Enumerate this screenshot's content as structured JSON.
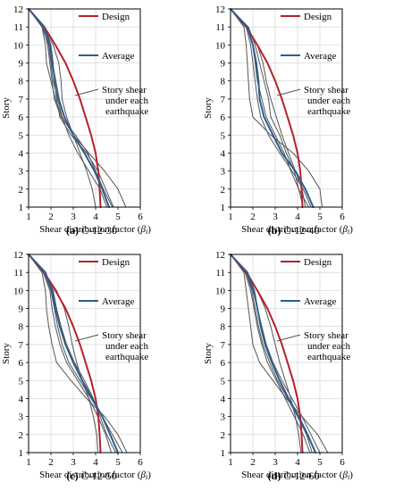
{
  "figure": {
    "xlabel_text": "Shear distribution factor (",
    "xlabel_symbol": "β",
    "xlabel_sub": "i",
    "xlabel_end": ")",
    "ylabel": "Story"
  },
  "legend": {
    "design": "Design",
    "average": "Average",
    "story_line1": "Story shear",
    "story_line2": "under each",
    "story_line3": "earthquake"
  },
  "colors": {
    "design": "#b5222a",
    "average": "#2a5d8f",
    "earthquake": "#555555",
    "grid": "#cfcfcf"
  },
  "chart_data": [
    {
      "type": "line",
      "caption_tag": "(a)",
      "caption_name": "C-12-30",
      "x_ticks": [
        1,
        2,
        3,
        4,
        5,
        6
      ],
      "y_ticks": [
        1,
        2,
        3,
        4,
        5,
        6,
        7,
        8,
        9,
        10,
        11,
        12
      ],
      "xlim": [
        1,
        6
      ],
      "ylim": [
        1,
        12
      ],
      "grid": true,
      "legend_position": "top-right",
      "y": [
        12,
        11,
        10,
        9,
        8,
        7,
        6,
        5,
        4,
        3,
        2,
        1
      ],
      "series": [
        {
          "name": "Design",
          "role": "design",
          "x": [
            1,
            1.7,
            2.2,
            2.65,
            3.0,
            3.3,
            3.55,
            3.8,
            4.0,
            4.12,
            4.18,
            4.22
          ]
        },
        {
          "name": "Average",
          "role": "average",
          "x": [
            1,
            1.7,
            1.95,
            2.05,
            2.2,
            2.35,
            2.6,
            3.0,
            3.5,
            3.95,
            4.3,
            4.6
          ]
        },
        {
          "role": "earthquake",
          "x": [
            1,
            1.6,
            1.75,
            1.8,
            2.0,
            2.2,
            2.5,
            3.0,
            3.7,
            4.4,
            5.0,
            5.35
          ]
        },
        {
          "role": "earthquake",
          "x": [
            1,
            1.65,
            2.1,
            2.35,
            2.45,
            2.5,
            2.7,
            3.0,
            3.3,
            3.6,
            3.85,
            4.0
          ]
        },
        {
          "role": "earthquake",
          "x": [
            1,
            1.7,
            2.0,
            2.1,
            2.15,
            2.25,
            2.4,
            2.9,
            3.6,
            4.1,
            4.45,
            4.8
          ]
        },
        {
          "role": "earthquake",
          "x": [
            1,
            1.6,
            1.9,
            2.0,
            2.1,
            2.3,
            2.5,
            2.8,
            3.2,
            3.7,
            4.2,
            4.5
          ]
        },
        {
          "role": "earthquake",
          "x": [
            1,
            1.65,
            1.85,
            1.95,
            2.05,
            2.15,
            2.45,
            3.1,
            3.65,
            4.0,
            4.35,
            4.75
          ]
        }
      ]
    },
    {
      "type": "line",
      "caption_tag": "(b)",
      "caption_name": "C-12-40",
      "x_ticks": [
        1,
        2,
        3,
        4,
        5,
        6
      ],
      "y_ticks": [
        1,
        2,
        3,
        4,
        5,
        6,
        7,
        8,
        9,
        10,
        11,
        12
      ],
      "xlim": [
        1,
        6
      ],
      "ylim": [
        1,
        12
      ],
      "grid": true,
      "legend_position": "top-right",
      "y": [
        12,
        11,
        10,
        9,
        8,
        7,
        6,
        5,
        4,
        3,
        2,
        1
      ],
      "series": [
        {
          "name": "Design",
          "role": "design",
          "x": [
            1,
            1.7,
            2.2,
            2.65,
            3.0,
            3.3,
            3.55,
            3.8,
            4.0,
            4.12,
            4.18,
            4.22
          ]
        },
        {
          "name": "Average",
          "role": "average",
          "x": [
            1,
            1.75,
            2.0,
            2.15,
            2.25,
            2.3,
            2.5,
            2.9,
            3.3,
            3.9,
            4.35,
            4.7
          ]
        },
        {
          "role": "earthquake",
          "x": [
            1,
            1.6,
            1.7,
            1.75,
            1.8,
            1.85,
            2.0,
            2.8,
            3.8,
            4.5,
            5.0,
            5.1
          ]
        },
        {
          "role": "earthquake",
          "x": [
            1,
            1.7,
            2.2,
            2.45,
            2.6,
            2.8,
            3.05,
            3.3,
            3.6,
            3.9,
            4.2,
            4.35
          ]
        },
        {
          "role": "earthquake",
          "x": [
            1,
            1.8,
            2.1,
            2.3,
            2.5,
            2.7,
            2.8,
            3.2,
            3.5,
            3.85,
            4.05,
            4.25
          ]
        },
        {
          "role": "earthquake",
          "x": [
            1,
            1.7,
            1.9,
            2.0,
            2.1,
            2.2,
            2.35,
            2.7,
            3.2,
            3.75,
            4.25,
            4.6
          ]
        },
        {
          "role": "earthquake",
          "x": [
            1,
            1.75,
            2.0,
            2.1,
            2.2,
            2.4,
            2.6,
            3.0,
            3.4,
            3.7,
            4.05,
            4.5
          ]
        }
      ]
    },
    {
      "type": "line",
      "caption_tag": "(c)",
      "caption_name": "C-12-50",
      "x_ticks": [
        1,
        2,
        3,
        4,
        5,
        6
      ],
      "y_ticks": [
        1,
        2,
        3,
        4,
        5,
        6,
        7,
        8,
        9,
        10,
        11,
        12
      ],
      "xlim": [
        1,
        6
      ],
      "ylim": [
        1,
        12
      ],
      "grid": true,
      "legend_position": "top-right",
      "y": [
        12,
        11,
        10,
        9,
        8,
        7,
        6,
        5,
        4,
        3,
        2,
        1
      ],
      "series": [
        {
          "name": "Design",
          "role": "design",
          "x": [
            1,
            1.7,
            2.2,
            2.65,
            3.0,
            3.3,
            3.55,
            3.8,
            4.0,
            4.12,
            4.18,
            4.22
          ]
        },
        {
          "name": "Average",
          "role": "average",
          "x": [
            1,
            1.75,
            2.05,
            2.2,
            2.4,
            2.65,
            3.0,
            3.4,
            3.85,
            4.3,
            4.65,
            5.0
          ]
        },
        {
          "role": "earthquake",
          "x": [
            1,
            1.6,
            1.75,
            1.8,
            1.9,
            2.05,
            2.25,
            2.9,
            3.6,
            4.4,
            5.0,
            5.4
          ]
        },
        {
          "role": "earthquake",
          "x": [
            1,
            1.7,
            2.25,
            2.6,
            2.8,
            2.95,
            3.15,
            3.4,
            3.7,
            3.9,
            4.05,
            4.1
          ]
        },
        {
          "role": "earthquake",
          "x": [
            1,
            1.75,
            2.1,
            2.25,
            2.45,
            2.7,
            3.05,
            3.5,
            3.9,
            4.2,
            4.5,
            4.9
          ]
        },
        {
          "role": "earthquake",
          "x": [
            1,
            1.7,
            2.0,
            2.15,
            2.3,
            2.5,
            2.8,
            3.3,
            3.8,
            4.3,
            4.75,
            5.2
          ]
        },
        {
          "role": "earthquake",
          "x": [
            1,
            1.65,
            1.95,
            2.05,
            2.2,
            2.4,
            2.7,
            3.2,
            3.7,
            4.1,
            4.45,
            4.7
          ]
        }
      ]
    },
    {
      "type": "line",
      "caption_tag": "(d)",
      "caption_name": "C-12-60",
      "x_ticks": [
        1,
        2,
        3,
        4,
        5,
        6
      ],
      "y_ticks": [
        1,
        2,
        3,
        4,
        5,
        6,
        7,
        8,
        9,
        10,
        11,
        12
      ],
      "xlim": [
        1,
        6
      ],
      "ylim": [
        1,
        12
      ],
      "grid": true,
      "legend_position": "top-right",
      "y": [
        12,
        11,
        10,
        9,
        8,
        7,
        6,
        5,
        4,
        3,
        2,
        1
      ],
      "series": [
        {
          "name": "Design",
          "role": "design",
          "x": [
            1,
            1.7,
            2.2,
            2.65,
            3.0,
            3.3,
            3.55,
            3.8,
            4.0,
            4.12,
            4.18,
            4.22
          ]
        },
        {
          "name": "Average",
          "role": "average",
          "x": [
            1,
            1.75,
            2.05,
            2.2,
            2.35,
            2.55,
            2.85,
            3.2,
            3.6,
            4.05,
            4.45,
            4.8
          ]
        },
        {
          "role": "earthquake",
          "x": [
            1,
            1.6,
            1.7,
            1.8,
            1.9,
            2.0,
            2.3,
            2.9,
            3.5,
            4.2,
            4.9,
            5.35
          ]
        },
        {
          "role": "earthquake",
          "x": [
            1,
            1.75,
            2.2,
            2.55,
            2.8,
            3.0,
            3.2,
            3.45,
            3.7,
            3.9,
            4.05,
            4.15
          ]
        },
        {
          "role": "earthquake",
          "x": [
            1,
            1.7,
            2.0,
            2.2,
            2.4,
            2.6,
            2.9,
            3.3,
            3.75,
            4.2,
            4.6,
            5.0
          ]
        },
        {
          "role": "earthquake",
          "x": [
            1,
            1.7,
            1.95,
            2.1,
            2.25,
            2.45,
            2.75,
            3.1,
            3.55,
            4.0,
            4.4,
            4.65
          ]
        },
        {
          "role": "earthquake",
          "x": [
            1,
            1.65,
            1.9,
            2.05,
            2.2,
            2.4,
            2.65,
            3.05,
            3.45,
            3.85,
            4.25,
            4.55
          ]
        }
      ]
    }
  ]
}
